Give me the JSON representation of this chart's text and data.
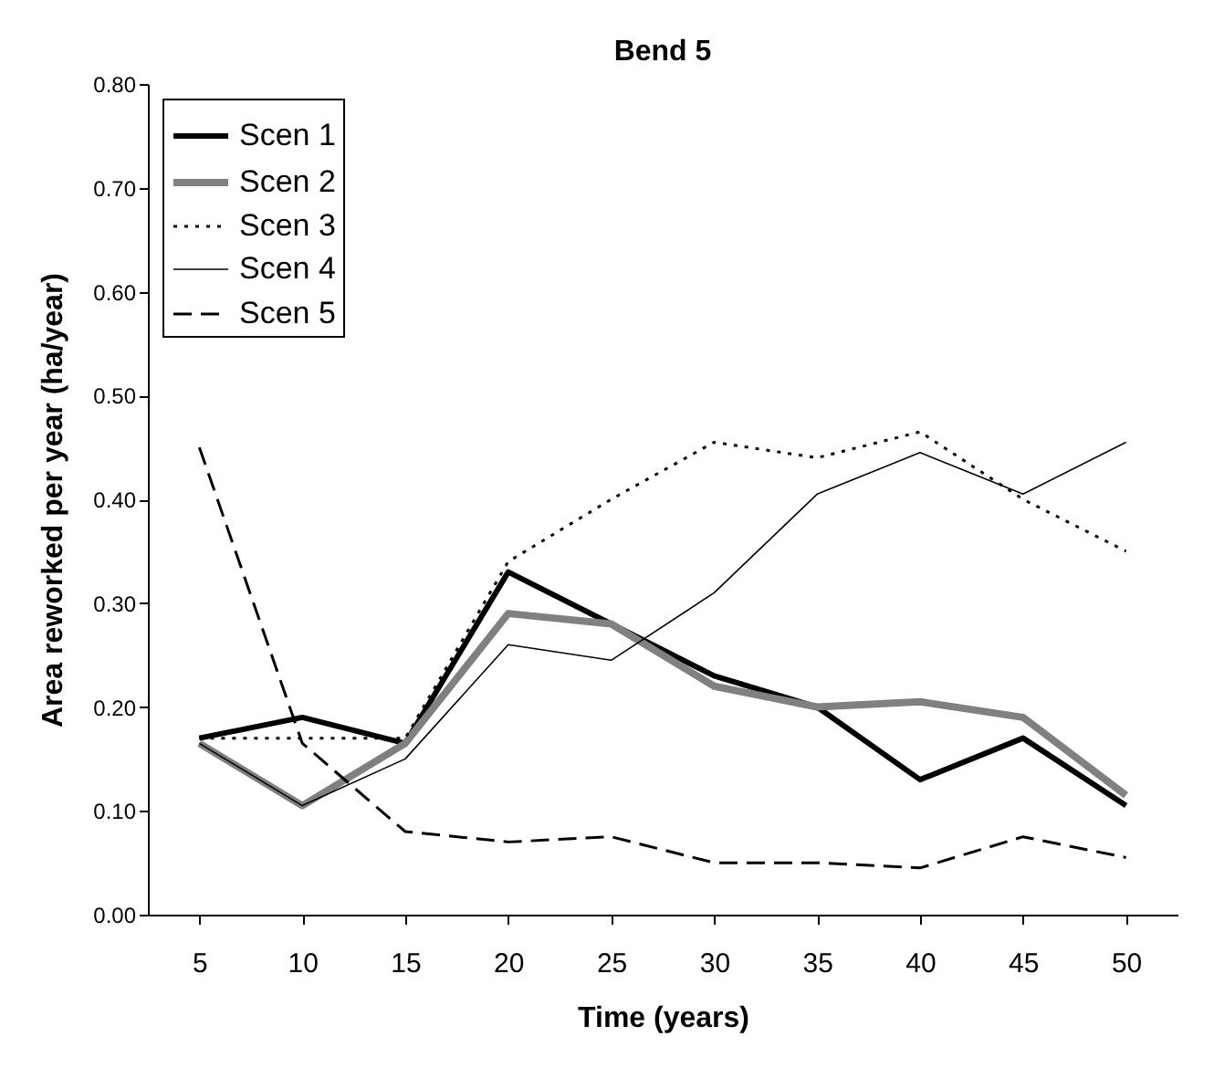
{
  "chart_data": {
    "type": "line",
    "title": "Bend 5",
    "xlabel": "Time (years)",
    "ylabel": "Area reworked per year (ha/year)",
    "categories": [
      "5",
      "10",
      "15",
      "20",
      "25",
      "30",
      "35",
      "40",
      "45",
      "50"
    ],
    "ylim": [
      0,
      0.8
    ],
    "yticks": [
      {
        "value": 0,
        "label": "0.00"
      },
      {
        "value": 0.1,
        "label": "0.10"
      },
      {
        "value": 0.2,
        "label": "0.20"
      },
      {
        "value": 0.3,
        "label": "0.30"
      },
      {
        "value": 0.4,
        "label": "0.40"
      },
      {
        "value": 0.5,
        "label": "0.50"
      },
      {
        "value": 0.6,
        "label": "0.60"
      },
      {
        "value": 0.7,
        "label": "0.70"
      },
      {
        "value": 0.8,
        "label": "0.80"
      }
    ],
    "grid": false,
    "legend": "top left",
    "marker": "none",
    "series": [
      {
        "name": "Scen 1",
        "color": "#000000",
        "line_style": "solid",
        "values": [
          0.17,
          0.19,
          0.165,
          0.33,
          0.28,
          0.23,
          0.2,
          0.13,
          0.17,
          0.105
        ]
      },
      {
        "name": "Scen 2",
        "color": "#808080",
        "line_style": "solid",
        "values": [
          0.165,
          0.105,
          0.165,
          0.29,
          0.28,
          0.22,
          0.2,
          0.205,
          0.19,
          0.115
        ]
      },
      {
        "name": "Scen 3",
        "color": "#000000",
        "line_style": "dotted",
        "values": [
          0.17,
          0.17,
          0.17,
          0.34,
          0.4,
          0.455,
          0.44,
          0.465,
          0.4,
          0.35
        ]
      },
      {
        "name": "Scen 4",
        "color": "#000000",
        "line_style": "solid",
        "values": [
          0.165,
          0.105,
          0.15,
          0.26,
          0.245,
          0.31,
          0.405,
          0.445,
          0.405,
          0.455
        ]
      },
      {
        "name": "Scen 5",
        "color": "#000000",
        "line_style": "dashed",
        "values": [
          0.45,
          0.165,
          0.08,
          0.07,
          0.075,
          0.05,
          0.05,
          0.045,
          0.075,
          0.055
        ]
      }
    ]
  }
}
